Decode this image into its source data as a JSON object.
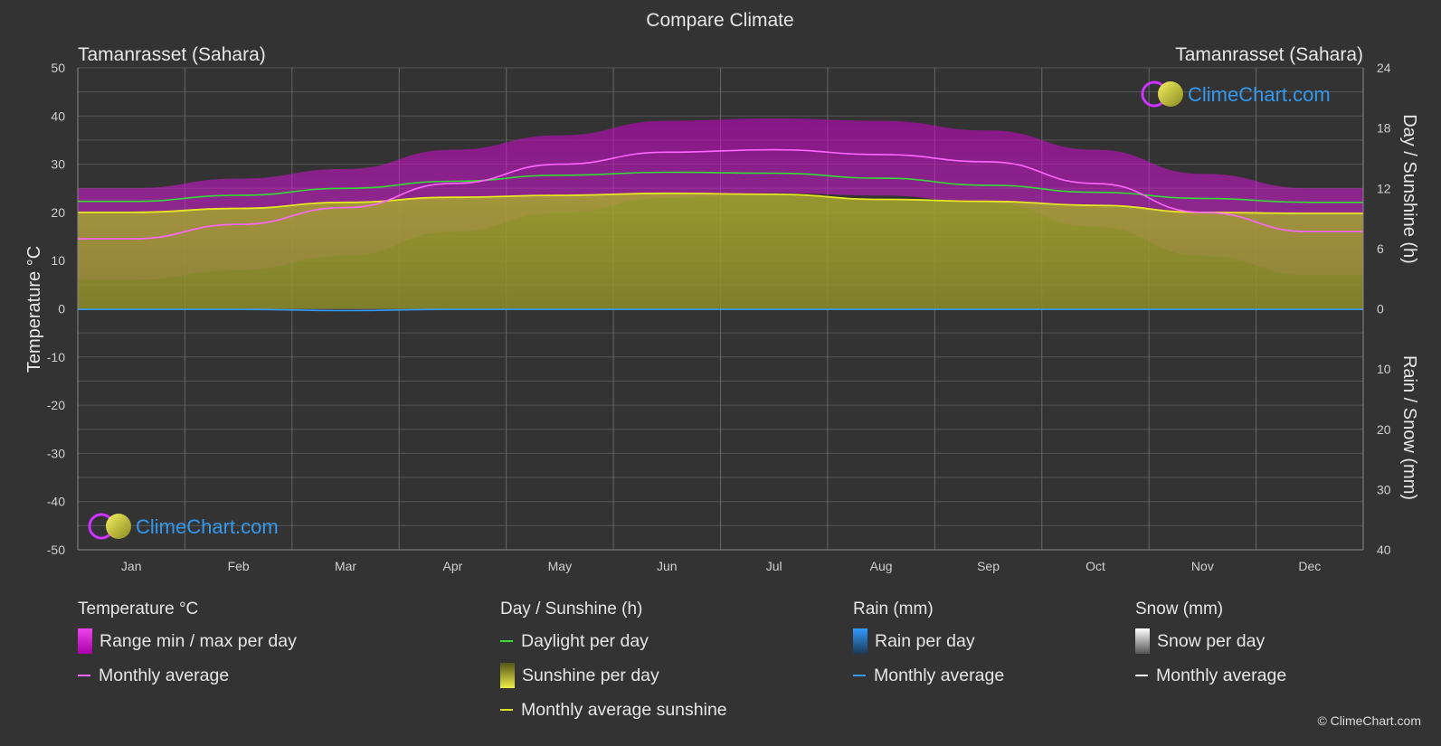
{
  "chart_data": {
    "type": "area",
    "title": "Compare Climate",
    "location_left": "Tamanrasset (Sahara)",
    "location_right": "Tamanrasset (Sahara)",
    "ylabel_left": "Temperature °C",
    "ylabel_right_top": "Day / Sunshine (h)",
    "ylabel_right_bottom": "Rain / Snow (mm)",
    "categories": [
      "Jan",
      "Feb",
      "Mar",
      "Apr",
      "May",
      "Jun",
      "Jul",
      "Aug",
      "Sep",
      "Oct",
      "Nov",
      "Dec"
    ],
    "left_ticks": [
      "50",
      "40",
      "30",
      "20",
      "10",
      "0",
      "-10",
      "-20",
      "-30",
      "-40",
      "-50"
    ],
    "right_ticks_top": [
      "24",
      "18",
      "12",
      "6",
      "0"
    ],
    "right_ticks_bottom": [
      "10",
      "20",
      "30",
      "40"
    ],
    "ylim_temperature": [
      -50,
      50
    ],
    "ylim_hours": [
      0,
      24
    ],
    "ylim_precip_mm": [
      0,
      40
    ],
    "series": [
      {
        "name": "Temperature monthly average",
        "color": "#ff66ff",
        "values": [
          14.5,
          17.5,
          21,
          26,
          30,
          32.5,
          33,
          32,
          30.5,
          26,
          20,
          16
        ]
      },
      {
        "name": "Temperature max average",
        "color": "#cc00cc",
        "values": [
          25,
          27,
          29,
          33,
          36,
          39,
          39.5,
          39,
          37,
          33,
          28,
          25
        ]
      },
      {
        "name": "Temperature min average",
        "color": "#cc00cc",
        "values": [
          6,
          8,
          11,
          16,
          20,
          23,
          24,
          23.5,
          22,
          17,
          11,
          7
        ]
      },
      {
        "name": "Daylight per day",
        "color": "#33dd33",
        "values": [
          10.7,
          11.3,
          12,
          12.7,
          13.3,
          13.6,
          13.5,
          13.0,
          12.3,
          11.6,
          11.0,
          10.6
        ]
      },
      {
        "name": "Sunshine per day",
        "color": "#c8c83a",
        "values": [
          9.6,
          10.0,
          10.6,
          11.1,
          11.3,
          11.5,
          11.4,
          10.9,
          10.7,
          10.3,
          9.6,
          9.5
        ]
      },
      {
        "name": "Rain monthly average",
        "color": "#3399ff",
        "values": [
          0.1,
          0.1,
          0.3,
          0.1,
          0.1,
          0.1,
          0.1,
          0.1,
          0.1,
          0.1,
          0.1,
          0.1
        ]
      }
    ],
    "grid": true
  },
  "watermark": {
    "text": "ClimeChart.com"
  },
  "legend": {
    "temperature": {
      "title": "Temperature °C",
      "items": [
        "Range min / max per day",
        "Monthly average"
      ]
    },
    "sunshine": {
      "title": "Day / Sunshine (h)",
      "items": [
        "Daylight per day",
        "Sunshine per day",
        "Monthly average sunshine"
      ]
    },
    "rain": {
      "title": "Rain (mm)",
      "items": [
        "Rain per day",
        "Monthly average"
      ]
    },
    "snow": {
      "title": "Snow (mm)",
      "items": [
        "Snow per day",
        "Monthly average"
      ]
    }
  },
  "copyright": "© ClimeChart.com",
  "colors": {
    "background": "#333333",
    "grid": "#5a5a5a",
    "text": "#e6e6e6",
    "watermark_text": "#3399ee"
  }
}
